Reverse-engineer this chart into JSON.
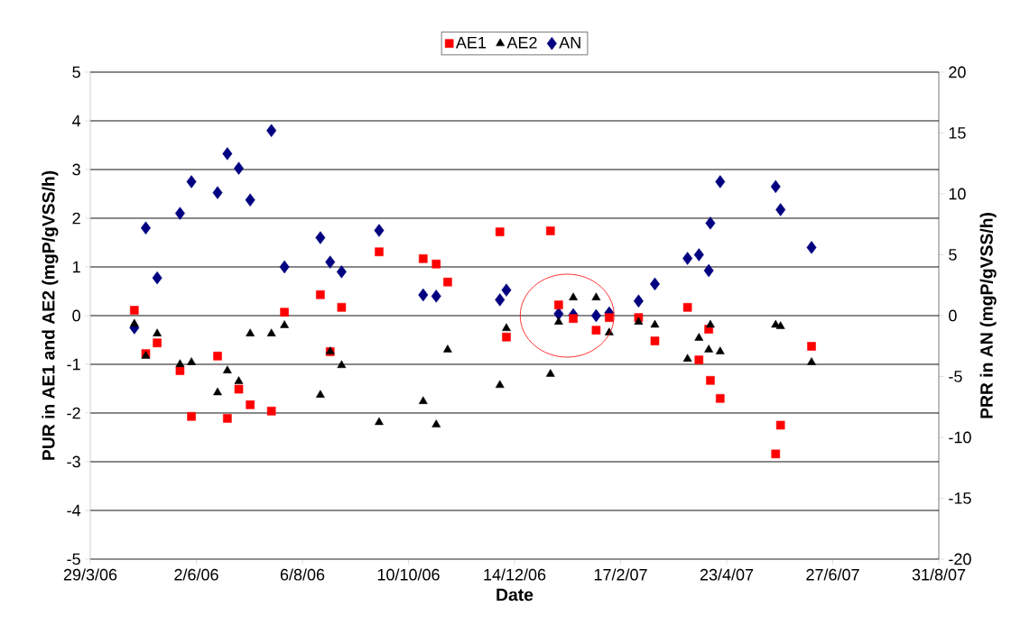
{
  "chart_data": {
    "type": "scatter",
    "xlabel": "Date",
    "ylabel": "PUR in AE1 and AE2 (mgP/gVSS/h)",
    "y2label": "PRR in AN (mgP/gVSS/h)",
    "x": [
      "2006-04-25",
      "2006-05-02",
      "2006-05-09",
      "2006-05-23",
      "2006-05-30",
      "2006-06-15",
      "2006-06-21",
      "2006-06-28",
      "2006-07-05",
      "2006-07-18",
      "2006-07-26",
      "2006-08-17",
      "2006-08-23",
      "2006-08-30",
      "2006-09-22",
      "2006-10-19",
      "2006-10-27",
      "2006-11-03",
      "2006-12-05",
      "2006-12-09",
      "2007-01-05",
      "2007-01-10",
      "2007-01-19",
      "2007-02-02",
      "2007-02-10",
      "2007-02-28",
      "2007-03-10",
      "2007-03-30",
      "2007-04-06",
      "2007-04-12",
      "2007-04-13",
      "2007-04-19",
      "2007-05-23",
      "2007-05-26",
      "2007-06-14"
    ],
    "series": [
      {
        "name": "AE1",
        "color": "#ff0000",
        "marker": "square",
        "values": [
          0.11,
          -0.78,
          -0.56,
          -1.13,
          -2.07,
          -0.83,
          -2.11,
          -1.51,
          -1.83,
          -1.96,
          0.07,
          0.43,
          -0.74,
          0.17,
          1.31,
          1.17,
          1.06,
          0.69,
          1.72,
          -0.44,
          1.74,
          0.22,
          -0.06,
          -0.3,
          -0.04,
          -0.04,
          -0.52,
          0.17,
          -0.91,
          -0.28,
          -1.33,
          -1.7,
          -2.84,
          -2.25,
          -0.63
        ]
      },
      {
        "name": "AE2",
        "color": "#000000",
        "marker": "triangle",
        "values": [
          -0.17,
          -0.83,
          -0.37,
          -1.0,
          -0.96,
          -1.58,
          -1.13,
          -1.35,
          -0.37,
          -0.37,
          -0.2,
          -1.63,
          -0.74,
          -1.02,
          -2.19,
          -1.76,
          -2.24,
          -0.7,
          -1.43,
          -0.26,
          -1.2,
          -0.13,
          0.37,
          0.37,
          -0.35,
          -0.13,
          -0.19,
          -0.89,
          -0.46,
          -0.7,
          -0.19,
          -0.74,
          -0.19,
          -0.22,
          -0.96
        ]
      },
      {
        "name": "AN",
        "color": "#000080",
        "marker": "diamond",
        "axis": "y2",
        "values": [
          -1.0,
          7.2,
          3.1,
          8.4,
          11.0,
          10.1,
          13.3,
          12.1,
          9.5,
          15.2,
          4.0,
          6.4,
          4.4,
          3.6,
          7.0,
          1.7,
          1.6,
          null,
          1.3,
          2.1,
          null,
          0.15,
          0.07,
          0.0,
          0.22,
          1.2,
          2.6,
          4.7,
          5.0,
          3.7,
          7.6,
          11.0,
          10.6,
          8.7,
          5.6
        ]
      }
    ],
    "xlim": [
      "2006-03-29",
      "2007-08-31"
    ],
    "xticks": [
      {
        "value": "2006-03-29",
        "label": "29/3/06"
      },
      {
        "value": "2006-06-02",
        "label": "2/6/06"
      },
      {
        "value": "2006-08-06",
        "label": "6/8/06"
      },
      {
        "value": "2006-10-10",
        "label": "10/10/06"
      },
      {
        "value": "2006-12-14",
        "label": "14/12/06"
      },
      {
        "value": "2007-02-17",
        "label": "17/2/07"
      },
      {
        "value": "2007-04-23",
        "label": "23/4/07"
      },
      {
        "value": "2007-06-27",
        "label": "27/6/07"
      },
      {
        "value": "2007-08-31",
        "label": "31/8/07"
      }
    ],
    "ylim": [
      -5,
      5
    ],
    "yticks": [
      -5,
      -4,
      -3,
      -2,
      -1,
      0,
      1,
      2,
      3,
      4,
      5
    ],
    "y2lim": [
      -20,
      20
    ],
    "y2ticks": [
      -20,
      -15,
      -10,
      -5,
      0,
      5,
      10,
      15,
      20
    ],
    "grid": "y",
    "legend": "top"
  }
}
